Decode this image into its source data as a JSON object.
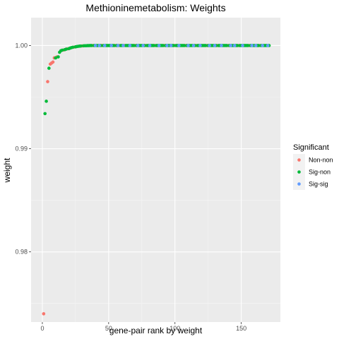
{
  "chart_data": {
    "type": "scatter",
    "title": "Methioninemetabolism: Weights",
    "xlabel": "gene-pair rank by weight",
    "ylabel": "weight",
    "xlim": [
      -8.5,
      179.5
    ],
    "ylim": [
      0.9732,
      1.0027
    ],
    "x_ticks": [
      0,
      50,
      100,
      150
    ],
    "x_minor_ticks": [
      25,
      75,
      125
    ],
    "y_ticks": [
      0.98,
      0.99,
      1.0
    ],
    "y_minor_ticks": [
      0.975,
      0.985,
      0.995
    ],
    "x_tick_labels": [
      "0",
      "50",
      "100",
      "150"
    ],
    "y_tick_labels": [
      "0.98",
      "0.99",
      "1.00"
    ],
    "grid": true,
    "legend": {
      "title": "Significant",
      "position": "right",
      "entries": [
        {
          "key": "non-non",
          "label": "Non-non",
          "color": "#F8766D"
        },
        {
          "key": "sig-non",
          "label": "Sig-non",
          "color": "#00BA38"
        },
        {
          "key": "sig-sig",
          "label": "Sig-sig",
          "color": "#619CFF"
        }
      ]
    },
    "series": [
      {
        "name": "Non-non",
        "color": "#F8766D",
        "points": [
          [
            1,
            0.974
          ],
          [
            4,
            0.9965
          ],
          [
            6,
            0.9982
          ],
          [
            7,
            0.9983
          ],
          [
            8,
            0.9984
          ],
          [
            9,
            0.9988
          ],
          [
            11,
            0.9989
          ],
          [
            16,
            0.99956
          ],
          [
            19,
            0.99968
          ],
          [
            24,
            0.99985
          ],
          [
            30,
            0.99996
          ],
          [
            38,
            1.0
          ],
          [
            45,
            1.0
          ],
          [
            55,
            1.0
          ],
          [
            58,
            1.0
          ],
          [
            62,
            1.0
          ],
          [
            70,
            1.0
          ],
          [
            78,
            1.0
          ],
          [
            85,
            1.0
          ],
          [
            92,
            1.0
          ],
          [
            100,
            1.0
          ],
          [
            108,
            1.0
          ],
          [
            116,
            1.0
          ],
          [
            124,
            1.0
          ],
          [
            132,
            1.0
          ],
          [
            140,
            1.0
          ],
          [
            148,
            1.0
          ],
          [
            156,
            1.0
          ],
          [
            164,
            1.0
          ]
        ]
      },
      {
        "name": "Sig-non",
        "color": "#00BA38",
        "points": [
          [
            2,
            0.9934
          ],
          [
            3,
            0.9946
          ],
          [
            5,
            0.9978
          ],
          [
            10,
            0.9988
          ],
          [
            12,
            0.9989
          ],
          [
            13,
            0.99935
          ],
          [
            14,
            0.9995
          ],
          [
            15,
            0.99955
          ],
          [
            17,
            0.9996
          ],
          [
            18,
            0.99965
          ],
          [
            20,
            0.9997
          ],
          [
            21,
            0.99975
          ],
          [
            22,
            0.9998
          ],
          [
            23,
            0.99983
          ],
          [
            25,
            0.99987
          ],
          [
            26,
            0.9999
          ],
          [
            27,
            0.99992
          ],
          [
            28,
            0.99994
          ],
          [
            29,
            0.99995
          ],
          [
            31,
            0.99997
          ],
          [
            32,
            0.99998
          ],
          [
            33,
            0.99998
          ],
          [
            34,
            0.99999
          ],
          [
            35,
            0.99999
          ],
          [
            36,
            1.0
          ],
          [
            37,
            1.0
          ],
          [
            39,
            1.0
          ],
          [
            40,
            1.0
          ],
          [
            41,
            1.0
          ],
          [
            42,
            1.0
          ],
          [
            43,
            1.0
          ],
          [
            44,
            1.0
          ],
          [
            46,
            1.0
          ],
          [
            47,
            1.0
          ],
          [
            48,
            1.0
          ],
          [
            49,
            1.0
          ],
          [
            50,
            1.0
          ],
          [
            51,
            1.0
          ],
          [
            52,
            1.0
          ],
          [
            53,
            1.0
          ],
          [
            54,
            1.0
          ],
          [
            56,
            1.0
          ],
          [
            57,
            1.0
          ],
          [
            59,
            1.0
          ],
          [
            60,
            1.0
          ],
          [
            61,
            1.0
          ],
          [
            63,
            1.0
          ],
          [
            64,
            1.0
          ],
          [
            65,
            1.0
          ],
          [
            66,
            1.0
          ],
          [
            67,
            1.0
          ],
          [
            68,
            1.0
          ],
          [
            69,
            1.0
          ],
          [
            71,
            1.0
          ],
          [
            72,
            1.0
          ],
          [
            73,
            1.0
          ],
          [
            74,
            1.0
          ],
          [
            75,
            1.0
          ],
          [
            76,
            1.0
          ],
          [
            77,
            1.0
          ],
          [
            79,
            1.0
          ],
          [
            80,
            1.0
          ],
          [
            81,
            1.0
          ],
          [
            82,
            1.0
          ],
          [
            83,
            1.0
          ],
          [
            84,
            1.0
          ],
          [
            86,
            1.0
          ],
          [
            87,
            1.0
          ],
          [
            88,
            1.0
          ],
          [
            89,
            1.0
          ],
          [
            90,
            1.0
          ],
          [
            91,
            1.0
          ],
          [
            93,
            1.0
          ],
          [
            94,
            1.0
          ],
          [
            95,
            1.0
          ],
          [
            96,
            1.0
          ],
          [
            97,
            1.0
          ],
          [
            98,
            1.0
          ],
          [
            99,
            1.0
          ],
          [
            101,
            1.0
          ],
          [
            102,
            1.0
          ],
          [
            103,
            1.0
          ],
          [
            104,
            1.0
          ],
          [
            105,
            1.0
          ],
          [
            106,
            1.0
          ],
          [
            107,
            1.0
          ],
          [
            109,
            1.0
          ],
          [
            110,
            1.0
          ],
          [
            111,
            1.0
          ],
          [
            112,
            1.0
          ],
          [
            113,
            1.0
          ],
          [
            114,
            1.0
          ],
          [
            115,
            1.0
          ],
          [
            117,
            1.0
          ],
          [
            118,
            1.0
          ],
          [
            119,
            1.0
          ],
          [
            120,
            1.0
          ],
          [
            121,
            1.0
          ],
          [
            122,
            1.0
          ],
          [
            123,
            1.0
          ],
          [
            125,
            1.0
          ],
          [
            126,
            1.0
          ],
          [
            127,
            1.0
          ],
          [
            128,
            1.0
          ],
          [
            129,
            1.0
          ],
          [
            130,
            1.0
          ],
          [
            131,
            1.0
          ],
          [
            133,
            1.0
          ],
          [
            134,
            1.0
          ],
          [
            135,
            1.0
          ],
          [
            136,
            1.0
          ],
          [
            137,
            1.0
          ],
          [
            138,
            1.0
          ],
          [
            139,
            1.0
          ],
          [
            141,
            1.0
          ],
          [
            142,
            1.0
          ],
          [
            143,
            1.0
          ],
          [
            144,
            1.0
          ],
          [
            145,
            1.0
          ],
          [
            146,
            1.0
          ],
          [
            147,
            1.0
          ],
          [
            149,
            1.0
          ],
          [
            150,
            1.0
          ],
          [
            151,
            1.0
          ],
          [
            152,
            1.0
          ],
          [
            153,
            1.0
          ],
          [
            154,
            1.0
          ],
          [
            155,
            1.0
          ],
          [
            157,
            1.0
          ],
          [
            158,
            1.0
          ],
          [
            159,
            1.0
          ],
          [
            160,
            1.0
          ],
          [
            161,
            1.0
          ],
          [
            162,
            1.0
          ],
          [
            163,
            1.0
          ],
          [
            165,
            1.0
          ],
          [
            166,
            1.0
          ],
          [
            167,
            1.0
          ],
          [
            168,
            1.0
          ],
          [
            169,
            1.0
          ],
          [
            170,
            1.0
          ],
          [
            171,
            1.0
          ]
        ]
      },
      {
        "name": "Sig-sig",
        "color": "#619CFF",
        "points": [
          [
            40,
            1.0
          ],
          [
            43,
            1.0
          ],
          [
            47,
            1.0
          ],
          [
            52,
            1.0
          ],
          [
            57,
            1.0
          ],
          [
            61,
            1.0
          ],
          [
            66,
            1.0
          ],
          [
            72,
            1.0
          ],
          [
            76,
            1.0
          ],
          [
            81,
            1.0
          ],
          [
            88,
            1.0
          ],
          [
            94,
            1.0
          ],
          [
            97,
            1.0
          ],
          [
            103,
            1.0
          ],
          [
            110,
            1.0
          ],
          [
            114,
            1.0
          ],
          [
            119,
            1.0
          ],
          [
            126,
            1.0
          ],
          [
            130,
            1.0
          ],
          [
            135,
            1.0
          ],
          [
            142,
            1.0
          ],
          [
            145,
            1.0
          ],
          [
            151,
            1.0
          ],
          [
            158,
            1.0
          ],
          [
            161,
            1.0
          ],
          [
            166,
            1.0
          ],
          [
            170,
            1.0
          ]
        ]
      }
    ]
  }
}
